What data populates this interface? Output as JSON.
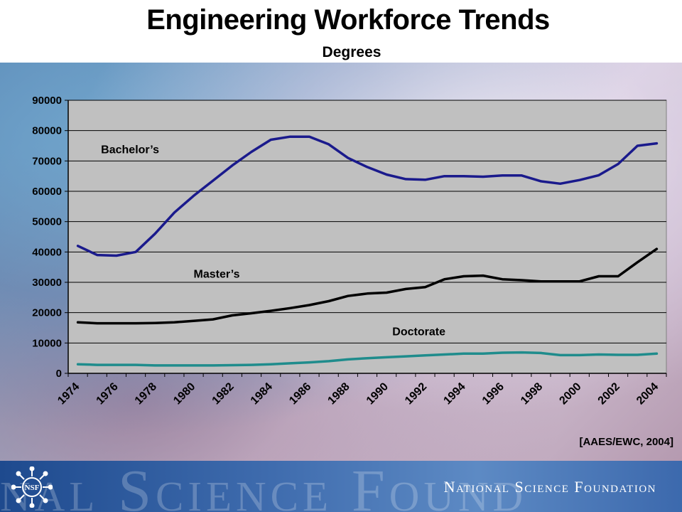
{
  "header": {
    "title": "Engineering Workforce Trends",
    "subtitle": "Degrees"
  },
  "source": "[AAES/EWC, 2004]",
  "footer": {
    "watermark": "nal Science Found",
    "org_name": "National Science Foundation",
    "logo_text": "NSF"
  },
  "chart_data": {
    "type": "line",
    "title": "",
    "xlabel": "",
    "ylabel": "",
    "ylim": [
      0,
      90000
    ],
    "yticks": [
      "0",
      "10000",
      "20000",
      "30000",
      "40000",
      "50000",
      "60000",
      "70000",
      "80000",
      "90000"
    ],
    "xlim": [
      1974,
      2005
    ],
    "xticks": [
      "1974",
      "1976",
      "1978",
      "1980",
      "1982",
      "1984",
      "1986",
      "1988",
      "1990",
      "1992",
      "1994",
      "1996",
      "1998",
      "2000",
      "2002",
      "2004"
    ],
    "grid": true,
    "x": [
      1974.5,
      1975.5,
      1976.5,
      1977.5,
      1978.5,
      1979.5,
      1980.5,
      1981.5,
      1982.5,
      1983.5,
      1984.5,
      1985.5,
      1986.5,
      1987.5,
      1988.5,
      1989.5,
      1990.5,
      1991.5,
      1992.5,
      1993.5,
      1994.5,
      1995.5,
      1996.5,
      1997.5,
      1998.5,
      1999.5,
      2000.5,
      2001.5,
      2002.5,
      2003.5,
      2004.5
    ],
    "series": [
      {
        "name": "Bachelor’s",
        "color": "#1a1a8c",
        "values": [
          42000,
          39000,
          38800,
          40000,
          46000,
          53000,
          58500,
          63500,
          68500,
          73000,
          77000,
          78000,
          78000,
          75500,
          71000,
          68000,
          65500,
          64000,
          63800,
          65000,
          65000,
          64800,
          65200,
          65200,
          63300,
          62500,
          63700,
          65300,
          69000,
          75000,
          75800
        ]
      },
      {
        "name": "Master’s",
        "color": "#000000",
        "values": [
          16800,
          16500,
          16500,
          16500,
          16600,
          16800,
          17300,
          17800,
          19100,
          19800,
          20600,
          21500,
          22500,
          23800,
          25500,
          26300,
          26600,
          27800,
          28400,
          31000,
          32000,
          32200,
          31000,
          30700,
          30300,
          30300,
          30300,
          32000,
          32000,
          36600,
          41000
        ]
      },
      {
        "name": "Doctorate",
        "color": "#1f8c8c",
        "values": [
          3000,
          2800,
          2800,
          2800,
          2600,
          2600,
          2600,
          2600,
          2700,
          2800,
          3000,
          3300,
          3600,
          4000,
          4600,
          5000,
          5300,
          5600,
          5900,
          6200,
          6500,
          6500,
          6800,
          6900,
          6700,
          6000,
          6000,
          6200,
          6100,
          6100,
          6500
        ]
      }
    ]
  }
}
